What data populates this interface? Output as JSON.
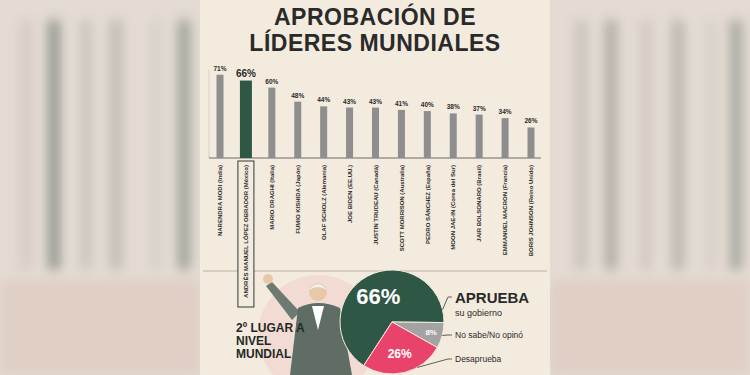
{
  "chart_data": [
    {
      "type": "bar",
      "title": "APROBACIÓN DE LÍDERES MUNDIALES",
      "categories": [
        "NARENDRA MODI (India)",
        "ANDRÉS MANUEL LÓPEZ OBRADOR (México)",
        "MARIO DRAGHI (Italia)",
        "FUMIO KISHIDA (Japón)",
        "OLAF SCHOLZ (Alemania)",
        "JOE BIDEN (EE.UU.)",
        "JUSTIN TRUDEAU (Canadá)",
        "SCOTT MORRISON (Australia)",
        "PEDRO SÁNCHEZ (España)",
        "MOON JAE-IN (Corea del Sur)",
        "JAIR BOLSONARO (Brasil)",
        "EMMANUEL MACRON (Francia)",
        "BORIS JOHNSON (Reino Unido)"
      ],
      "values": [
        71,
        66,
        60,
        48,
        44,
        43,
        43,
        41,
        40,
        38,
        37,
        34,
        26
      ],
      "value_labels": [
        "71%",
        "66%",
        "60%",
        "48%",
        "44%",
        "43%",
        "43%",
        "41%",
        "40%",
        "38%",
        "37%",
        "34%",
        "26%"
      ],
      "colors": [
        "#8e8e8e",
        "#2f5746",
        "#8e8e8e",
        "#8e8e8e",
        "#8e8e8e",
        "#8e8e8e",
        "#8e8e8e",
        "#8e8e8e",
        "#8e8e8e",
        "#8e8e8e",
        "#8e8e8e",
        "#8e8e8e",
        "#8e8e8e"
      ],
      "ylim": [
        0,
        75
      ],
      "data_labels": true,
      "tick_labels": "x",
      "grid": false
    },
    {
      "type": "pie",
      "categories": [
        "APRUEBA",
        "No sabe/No opinó",
        "Desaprueba"
      ],
      "values": [
        66,
        8,
        26
      ],
      "value_labels": [
        "66%",
        "8%",
        "26%"
      ],
      "colors": [
        "#2f5746",
        "#a3a3a3",
        "#e9436b"
      ],
      "data_labels": true,
      "annotations": [
        "su gobierno",
        "2º LUGAR A NIVEL MUNDIAL"
      ]
    }
  ]
}
